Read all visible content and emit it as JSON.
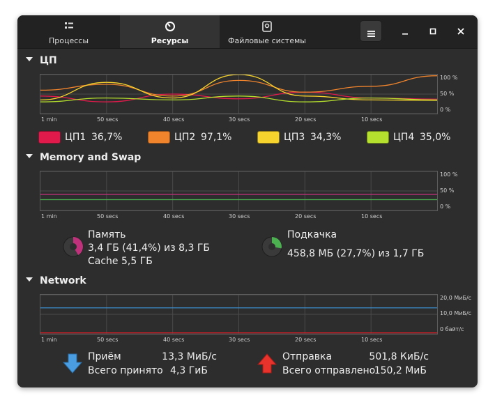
{
  "tabs": [
    {
      "label": "Процессы",
      "icon": "list-icon"
    },
    {
      "label": "Ресурсы",
      "icon": "gauge-icon"
    },
    {
      "label": "Файловые системы",
      "icon": "disk-icon"
    }
  ],
  "active_tab": "Ресурсы",
  "window_buttons": [
    "menu",
    "minimize",
    "maximize",
    "close"
  ],
  "sections": {
    "cpu": {
      "title": "ЦП"
    },
    "memory": {
      "title": "Memory and Swap"
    },
    "network": {
      "title": "Network"
    }
  },
  "axes": {
    "x_labels": [
      "1 min",
      "50 secs",
      "40 secs",
      "30 secs",
      "20 secs",
      "10 secs"
    ],
    "percent_labels": [
      "100 %",
      "50 %",
      "0 %"
    ],
    "network_labels": [
      "20,0 МиБ/с",
      "10,0 МиБ/с",
      "0 байт/с"
    ]
  },
  "cpu": [
    {
      "name": "ЦП1",
      "value": "36,7%",
      "color": "#e01b4c"
    },
    {
      "name": "ЦП2",
      "value": "97,1%",
      "color": "#f0842d"
    },
    {
      "name": "ЦП3",
      "value": "34,3%",
      "color": "#f6d32d"
    },
    {
      "name": "ЦП4",
      "value": "35,0%",
      "color": "#b5e02d"
    }
  ],
  "memory": {
    "label": "Память",
    "usage": "3,4 ГБ (41,4%) из 8,3 ГБ",
    "cache": "Cache 5,5 ГБ",
    "fraction": 0.414,
    "color": "#c0317c"
  },
  "swap": {
    "label": "Подкачка",
    "usage": "458,8 МБ (27,7%) из 1,7 ГБ",
    "fraction": 0.277,
    "color": "#4caf50"
  },
  "network": {
    "receive_label": "Приём",
    "receive_rate": "13,3 МиБ/с",
    "total_received_label": "Всего принято",
    "total_received": "4,3 ГиБ",
    "send_label": "Отправка",
    "send_rate": "501,8 КиБ/с",
    "total_sent_label": "Всего отправлено",
    "total_sent": "150,2 МиБ",
    "receive_color": "#3d8fd1",
    "send_color": "#e01b24"
  },
  "chart_data": [
    {
      "type": "line",
      "x": [
        60,
        50,
        40,
        30,
        20,
        10,
        0
      ],
      "ylim": [
        0,
        100
      ],
      "series": [
        {
          "name": "ЦП1",
          "values": [
            45,
            30,
            50,
            38,
            55,
            40,
            37
          ]
        },
        {
          "name": "ЦП2",
          "values": [
            60,
            75,
            45,
            85,
            55,
            70,
            97
          ]
        },
        {
          "name": "ЦП3",
          "values": [
            35,
            80,
            40,
            100,
            45,
            35,
            34
          ]
        },
        {
          "name": "ЦП4",
          "values": [
            30,
            40,
            35,
            45,
            30,
            40,
            35
          ]
        }
      ]
    },
    {
      "type": "line",
      "x": [
        60,
        0
      ],
      "ylim": [
        0,
        100
      ],
      "series": [
        {
          "name": "Память",
          "values": [
            41.4,
            41.4
          ]
        },
        {
          "name": "Подкачка",
          "values": [
            27.7,
            27.7
          ]
        }
      ]
    },
    {
      "type": "line",
      "x": [
        60,
        0
      ],
      "ylim": [
        0,
        20
      ],
      "series": [
        {
          "name": "Приём",
          "values": [
            13.3,
            13.3
          ]
        },
        {
          "name": "Отправка",
          "values": [
            0.5,
            0.5
          ]
        }
      ]
    }
  ]
}
